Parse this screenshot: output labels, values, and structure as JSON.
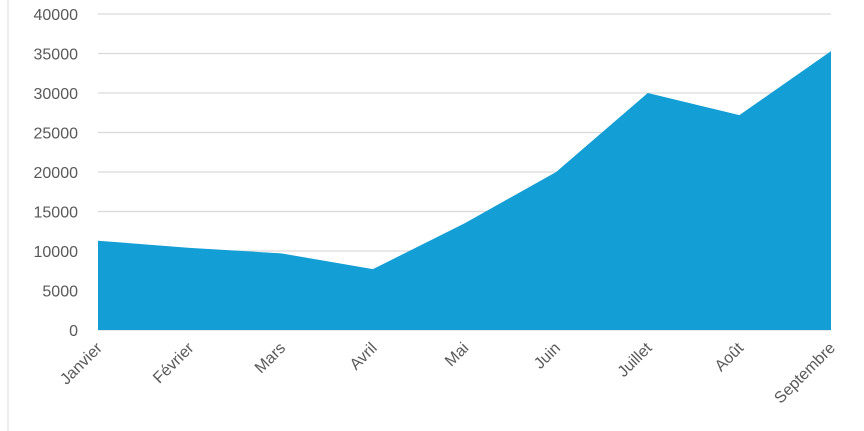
{
  "chart_data": {
    "type": "area",
    "title": "",
    "xlabel": "",
    "ylabel": "",
    "categories": [
      "Janvier",
      "Février",
      "Mars",
      "Avril",
      "Mai",
      "Juin",
      "Juillet",
      "Août",
      "Septembre"
    ],
    "series": [
      {
        "values": [
          11300,
          10400,
          9700,
          7700,
          13500,
          20000,
          30000,
          27200,
          35300
        ]
      }
    ],
    "ylim": [
      0,
      40000
    ],
    "yticks": [
      0,
      5000,
      10000,
      15000,
      20000,
      25000,
      30000,
      35000,
      40000
    ],
    "grid": true,
    "legend": "none",
    "colors": {
      "area": "#139ed6",
      "grid": "#d9d9d9",
      "text": "#595959"
    }
  }
}
